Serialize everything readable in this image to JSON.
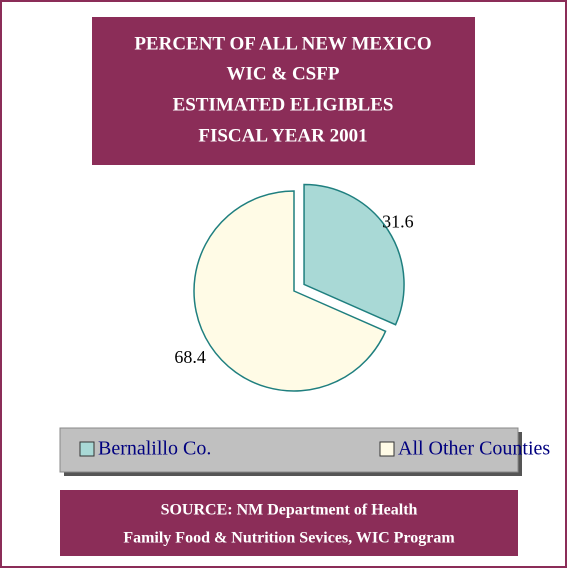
{
  "chart_data": {
    "type": "pie",
    "title": [
      "PERCENT OF ALL NEW MEXICO",
      "WIC & CSFP",
      "ESTIMATED ELIGIBLES",
      "FISCAL YEAR 2001"
    ],
    "categories": [
      "Bernalillo Co.",
      "All Other Counties"
    ],
    "values": [
      31.6,
      68.4
    ],
    "colors": [
      "#a9d9d6",
      "#fffbe6"
    ],
    "edge_color": "#1f7f7f",
    "exploded": [
      true,
      false
    ],
    "legend": "bottom",
    "source": [
      "SOURCE: NM Department of Health",
      "Family Food & Nutrition Sevices, WIC Program"
    ]
  }
}
